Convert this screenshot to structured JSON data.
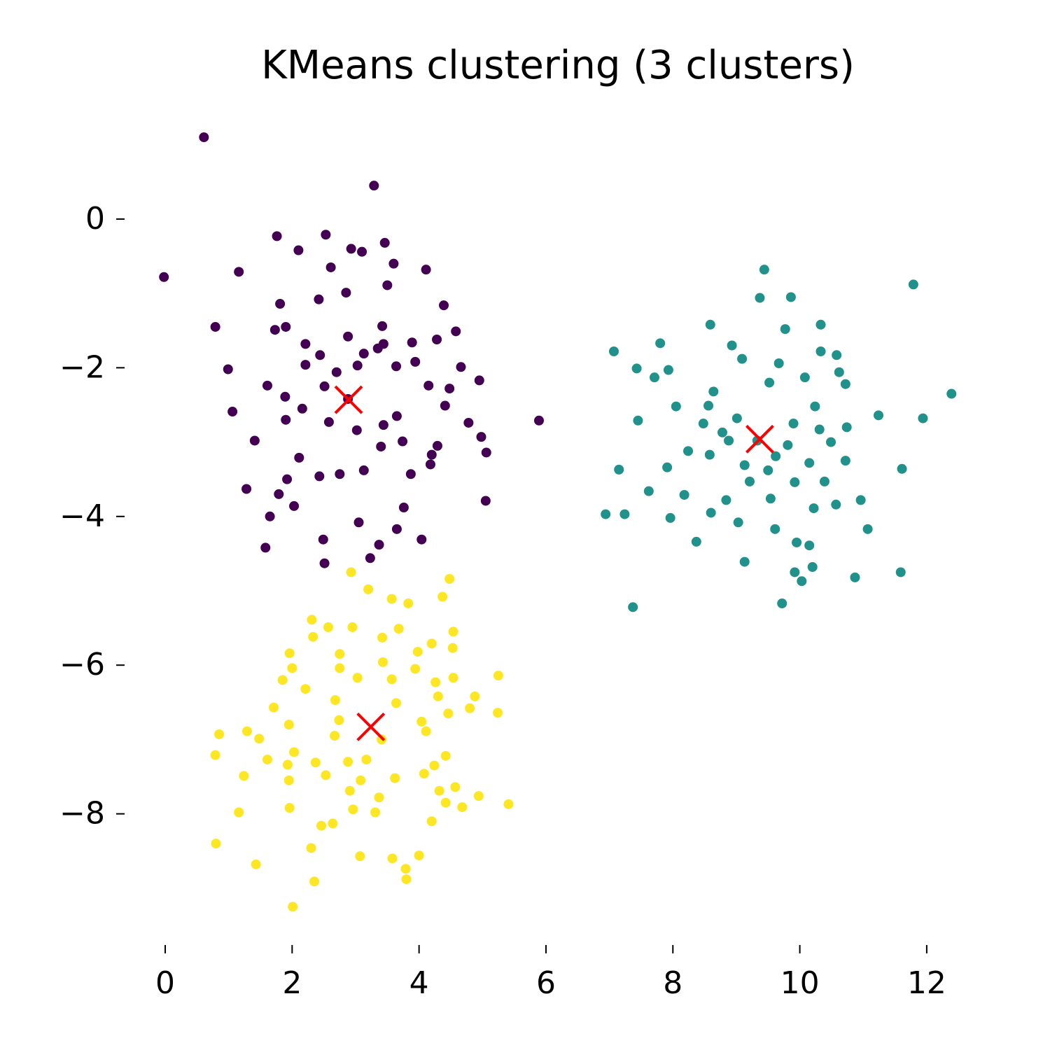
{
  "chart_data": {
    "type": "scatter",
    "title": "KMeans clustering (3 clusters)",
    "xlim": [
      -0.64,
      13.06
    ],
    "ylim": [
      -9.67,
      1.44
    ],
    "xticks": [
      0,
      2,
      4,
      6,
      8,
      10,
      12
    ],
    "yticks": [
      {
        "value": 0,
        "label": "0"
      },
      {
        "value": -2,
        "label": "−2"
      },
      {
        "value": -4,
        "label": "−4"
      },
      {
        "value": -6,
        "label": "−6"
      },
      {
        "value": -8,
        "label": "−8"
      }
    ],
    "grid": false,
    "series": [
      {
        "color": "#440154",
        "marker": "o",
        "x": [
          0.61,
          3.29,
          -0.02,
          1.76,
          2.53,
          3.46,
          2.1,
          2.93,
          3.1,
          3.6,
          2.61,
          4.11,
          1.16,
          3.5,
          2.85,
          1.81,
          4.39,
          2.42,
          0.79,
          1.9,
          3.42,
          1.73,
          4.58,
          2.88,
          3.89,
          0.99,
          1.61,
          4.95,
          4.66,
          3.94,
          2.88,
          1.06,
          1.41,
          1.9,
          2.51,
          3.03,
          3.64,
          4.41,
          4.78,
          4.98,
          5.06,
          5.89,
          4.18,
          1.28,
          1.92,
          1.79,
          2.03,
          1.65,
          1.58,
          2.49,
          2.51,
          3.23,
          3.37,
          3.05,
          3.65,
          4.04,
          5.05,
          3.76,
          3.87,
          3.13,
          2.75,
          2.43,
          3.4,
          2.11,
          3.74,
          3.02,
          3.44,
          2.58,
          2.16,
          1.89,
          2.7,
          3.13,
          3.35,
          3.44,
          4.28,
          2.21,
          2.21,
          2.44,
          4.15,
          4.48,
          3.65,
          4.2,
          4.29
        ],
        "values": [
          1.1,
          0.45,
          -0.78,
          -0.23,
          -0.21,
          -0.32,
          -0.42,
          -0.4,
          -0.44,
          -0.6,
          -0.65,
          -0.68,
          -0.71,
          -0.89,
          -0.99,
          -1.14,
          -1.16,
          -1.08,
          -1.45,
          -1.45,
          -1.44,
          -1.49,
          -1.51,
          -1.58,
          -1.66,
          -2.02,
          -2.24,
          -2.17,
          -1.99,
          -1.92,
          -2.42,
          -2.59,
          -2.98,
          -2.7,
          -2.25,
          -1.97,
          -1.98,
          -2.51,
          -2.74,
          -2.93,
          -3.14,
          -2.71,
          -3.3,
          -3.63,
          -3.5,
          -3.7,
          -3.86,
          -4.0,
          -4.42,
          -4.31,
          -4.63,
          -4.56,
          -4.38,
          -4.08,
          -4.17,
          -4.31,
          -3.79,
          -3.88,
          -3.43,
          -3.38,
          -3.43,
          -3.46,
          -3.06,
          -3.21,
          -2.99,
          -2.84,
          -2.77,
          -2.73,
          -2.55,
          -2.39,
          -2.06,
          -1.81,
          -1.74,
          -1.68,
          -1.62,
          -1.68,
          -1.96,
          -1.83,
          -2.24,
          -2.28,
          -2.65,
          -3.17,
          -3.05
        ]
      },
      {
        "color": "#21918c",
        "marker": "o",
        "x": [
          9.44,
          11.79,
          9.86,
          9.37,
          10.33,
          8.59,
          9.77,
          7.8,
          7.07,
          8.93,
          10.33,
          10.58,
          9.09,
          7.43,
          7.93,
          9.67,
          9.52,
          10.08,
          10.62,
          7.71,
          12.39,
          10.72,
          8.05,
          8.56,
          10.24,
          11.24,
          11.94,
          7.45,
          10.74,
          10.31,
          9.9,
          9.01,
          8.48,
          8.78,
          10.49,
          8.24,
          8.58,
          9.62,
          10.15,
          10.72,
          11.61,
          7.15,
          7.91,
          9.13,
          9.21,
          9.92,
          10.39,
          7.62,
          8.18,
          8.84,
          9.54,
          10.96,
          10.57,
          10.22,
          6.94,
          7.24,
          7.96,
          8.6,
          9.03,
          9.61,
          11.07,
          8.37,
          9.95,
          10.15,
          9.13,
          10.2,
          9.92,
          10.03,
          10.87,
          11.59,
          9.72,
          7.37,
          9.33,
          9.81,
          8.88,
          9.5,
          8.64
        ],
        "values": [
          -0.68,
          -0.88,
          -1.05,
          -1.06,
          -1.42,
          -1.42,
          -1.48,
          -1.67,
          -1.78,
          -1.7,
          -1.78,
          -1.83,
          -1.88,
          -2.01,
          -2.03,
          -1.94,
          -2.2,
          -2.13,
          -2.06,
          -2.13,
          -2.35,
          -2.22,
          -2.52,
          -2.51,
          -2.52,
          -2.64,
          -2.68,
          -2.71,
          -2.8,
          -2.83,
          -2.75,
          -2.68,
          -2.75,
          -2.87,
          -3.0,
          -3.12,
          -3.17,
          -3.19,
          -3.28,
          -3.25,
          -3.36,
          -3.37,
          -3.34,
          -3.31,
          -3.53,
          -3.54,
          -3.53,
          -3.66,
          -3.71,
          -3.78,
          -3.76,
          -3.78,
          -3.84,
          -3.89,
          -3.97,
          -3.97,
          -4.02,
          -3.95,
          -4.08,
          -4.17,
          -4.17,
          -4.34,
          -4.35,
          -4.39,
          -4.61,
          -4.68,
          -4.75,
          -4.87,
          -4.82,
          -4.75,
          -5.17,
          -5.22,
          -2.98,
          -3.04,
          -2.98,
          -3.38,
          -2.32
        ]
      },
      {
        "color": "#fde725",
        "marker": "o",
        "x": [
          2.93,
          4.48,
          3.2,
          3.57,
          4.37,
          3.83,
          2.31,
          2.57,
          2.95,
          3.68,
          4.54,
          2.33,
          3.42,
          4.2,
          4.53,
          1.96,
          2.75,
          3.98,
          3.43,
          2.0,
          3.94,
          2.75,
          5.25,
          4.54,
          1.85,
          4.26,
          3.03,
          3.57,
          2.21,
          4.88,
          4.3,
          1.71,
          2.68,
          3.64,
          4.8,
          5.24,
          4.46,
          2.74,
          4.04,
          1.29,
          1.95,
          0.85,
          4.11,
          1.48,
          3.41,
          2.67,
          0.79,
          1.61,
          2.03,
          3.17,
          4.42,
          4.24,
          1.93,
          2.37,
          2.88,
          1.24,
          2.53,
          3.08,
          3.62,
          4.08,
          1.95,
          4.57,
          4.32,
          2.91,
          4.94,
          5.41,
          3.37,
          4.42,
          4.68,
          1.16,
          1.96,
          2.96,
          3.31,
          4.2,
          2.46,
          2.64,
          0.8,
          2.3,
          3.07,
          4.0,
          3.58,
          1.43,
          3.79,
          3.8,
          2.35,
          2.01
        ],
        "values": [
          -4.75,
          -4.84,
          -4.98,
          -5.11,
          -5.08,
          -5.17,
          -5.39,
          -5.49,
          -5.49,
          -5.51,
          -5.55,
          -5.62,
          -5.63,
          -5.71,
          -5.77,
          -5.84,
          -5.85,
          -5.82,
          -5.96,
          -6.04,
          -6.05,
          -6.04,
          -6.14,
          -6.17,
          -6.2,
          -6.23,
          -6.17,
          -6.19,
          -6.32,
          -6.42,
          -6.42,
          -6.57,
          -6.47,
          -6.51,
          -6.58,
          -6.64,
          -6.65,
          -6.74,
          -6.76,
          -6.89,
          -6.8,
          -6.93,
          -6.89,
          -6.99,
          -7.0,
          -6.95,
          -7.21,
          -7.27,
          -7.17,
          -7.27,
          -7.22,
          -7.35,
          -7.34,
          -7.31,
          -7.3,
          -7.49,
          -7.48,
          -7.55,
          -7.52,
          -7.46,
          -7.55,
          -7.64,
          -7.69,
          -7.69,
          -7.76,
          -7.87,
          -7.78,
          -7.85,
          -7.91,
          -7.98,
          -7.92,
          -7.94,
          -7.98,
          -8.1,
          -8.16,
          -8.13,
          -8.4,
          -8.46,
          -8.57,
          -8.56,
          -8.6,
          -8.68,
          -8.74,
          -8.88,
          -8.91,
          -9.25
        ]
      },
      {
        "color": "#ff0000",
        "marker": "x",
        "x": [
          2.89,
          9.37,
          3.24
        ],
        "values": [
          -2.43,
          -2.96,
          -6.83
        ]
      }
    ]
  }
}
